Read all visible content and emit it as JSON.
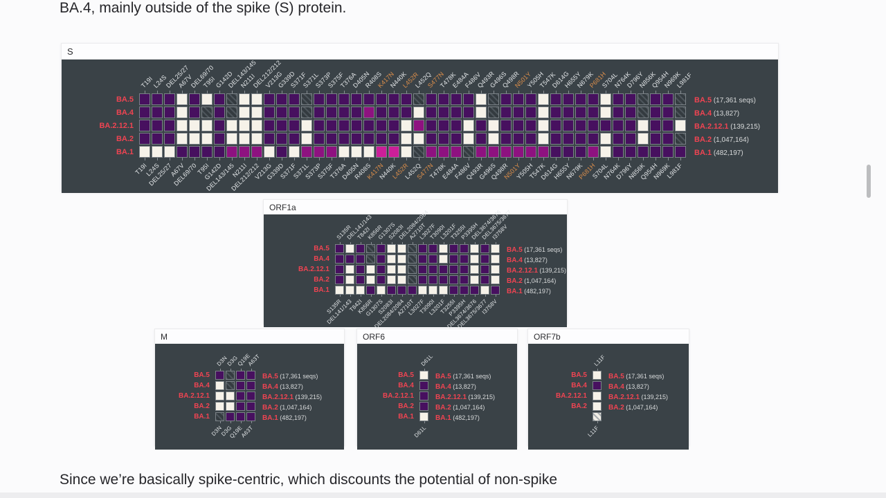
{
  "page": {
    "top_text": "BA.4, mainly outside of the spike (S) protein.",
    "bottom_text": "Since we’re basically spike-centric, which discounts the potential of non-spike"
  },
  "colors": {
    "panel_background": "#3a4247",
    "cell_present_purple": "#47105f",
    "cell_present_magenta": "#8e1280",
    "cell_present_pink": "#cb1f99",
    "cell_absent_white": "#f6f2e9",
    "variant_label_red": "#ef4452",
    "highlight_label_orange": "#dd8f4b",
    "count_label_gray": "#d8dadb"
  },
  "cell_encoding": {
    "p": "mutation present (dark purple)",
    "m": "mutation present (magenta)",
    "b": "mutation present (bright pink)",
    "w": "mutation absent (white)",
    "h": "unknown / no coverage (dark hatched)",
    "l": "unknown / no coverage (light hatched)"
  },
  "chart_data": [
    {
      "type": "heatmap",
      "id": "S",
      "title": "S",
      "columns": [
        "T19I",
        "L24S",
        "DEL25/27",
        "A67V",
        "DEL69/70",
        "T95I",
        "G142D",
        "DEL143/145",
        "N211I",
        "DEL212/212",
        "V213G",
        "G339D",
        "S371F",
        "S371L",
        "S373P",
        "S375F",
        "T376A",
        "D405N",
        "R408S",
        "K417N",
        "N440K",
        "L452R",
        "L452Q",
        "S477N",
        "T478K",
        "E484A",
        "F486V",
        "Q493R",
        "G496S",
        "Q498R",
        "N501Y",
        "Y505H",
        "T547K",
        "D614G",
        "H655Y",
        "N679K",
        "P681H",
        "S704L",
        "N764K",
        "D796Y",
        "N856K",
        "Q954H",
        "N969K",
        "L981F"
      ],
      "highlighted": [
        "K417N",
        "L452R",
        "S477N",
        "N501Y",
        "P681H"
      ],
      "rows": [
        "BA.5",
        "BA.4",
        "BA.2.12.1",
        "BA.2",
        "BA.1"
      ],
      "row_counts": [
        "(17,361 seqs)",
        "(13,827)",
        "(139,215)",
        "(1,047,164)",
        "(482,197)"
      ],
      "cells": [
        "pppwpwphwwppphpppppppphppppwhpppwppppwpphpph",
        "pppwphphwwppphppppmpppwppppwhpppwppppwpphpph",
        "pppwwwpwwwpppwpppppppwmpppwpwpppwpppppppwppw",
        "pppwwwpwwwpppwpppppppwwpppwpwpppwppppwppwpph",
        "wwwppppmmmwpwmmmwwwbbwhmmmhmmmmmmpppmwpppppp"
      ]
    },
    {
      "type": "heatmap",
      "id": "ORF1a",
      "title": "ORF1a",
      "columns": [
        "S135R",
        "DEL141/143",
        "T842I",
        "K856R",
        "G1307S",
        "S2083I",
        "DEL2084/2084",
        "A2710T",
        "L3027F",
        "T3090I",
        "L3201F",
        "T3255I",
        "P3395H",
        "DEL3674/3676",
        "DEL3675/3677",
        "I3758V"
      ],
      "highlighted": [],
      "rows": [
        "BA.5",
        "BA.4",
        "BA.2.12.1",
        "BA.2",
        "BA.1"
      ],
      "row_counts": [
        "(17,361 seqs)",
        "(13,827)",
        "(139,215)",
        "(1,047,164)",
        "(482,197)"
      ],
      "cells": [
        "pwphpwwhppwppwpw",
        "ppphpwwhppwppwpw",
        "pwpwpwwhpppppwpw",
        "pwpwpwwhpppppwpw",
        "wwwpwpppwwwpppwp"
      ]
    },
    {
      "type": "heatmap",
      "id": "M",
      "title": "M",
      "columns": [
        "D3N",
        "D3G",
        "Q19E",
        "A63T"
      ],
      "highlighted": [],
      "rows": [
        "BA.5",
        "BA.4",
        "BA.2.12.1",
        "BA.2",
        "BA.1"
      ],
      "row_counts": [
        "(17,361 seqs)",
        "(13,827)",
        "(139,215)",
        "(1,047,164)",
        "(482,197)"
      ],
      "cells": [
        "phpp",
        "whpp",
        "wwpp",
        "wwpp",
        "hppp"
      ]
    },
    {
      "type": "heatmap",
      "id": "ORF6",
      "title": "ORF6",
      "columns": [
        "D61L"
      ],
      "highlighted": [],
      "rows": [
        "BA.5",
        "BA.4",
        "BA.2.12.1",
        "BA.2",
        "BA.1"
      ],
      "row_counts": [
        "(17,361 seqs)",
        "(13,827)",
        "(139,215)",
        "(1,047,164)",
        "(482,197)"
      ],
      "cells": [
        "w",
        "p",
        "p",
        "p",
        "w"
      ]
    },
    {
      "type": "heatmap",
      "id": "ORF7b",
      "title": "ORF7b",
      "columns": [
        "L11F"
      ],
      "highlighted": [],
      "rows": [
        "BA.5",
        "BA.4",
        "BA.2.12.1",
        "BA.2",
        "BA.1"
      ],
      "row_counts": [
        "(17,361 seqs)",
        "(13,827)",
        "(139,215)",
        "(1,047,164)",
        ""
      ],
      "row_label_visible": [
        true,
        true,
        true,
        true,
        false
      ],
      "cells": [
        "w",
        "p",
        "w",
        "w",
        "l"
      ]
    }
  ]
}
